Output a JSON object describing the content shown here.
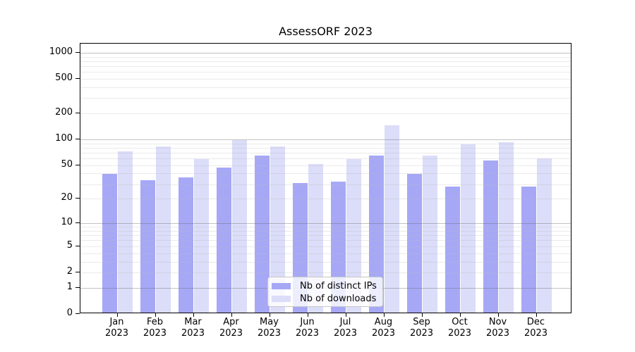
{
  "chart_data": {
    "type": "bar",
    "title": "AssessORF 2023",
    "categories": [
      "Jan",
      "Feb",
      "Mar",
      "Apr",
      "May",
      "Jun",
      "Jul",
      "Aug",
      "Sep",
      "Oct",
      "Nov",
      "Dec"
    ],
    "x_year_label": "2023",
    "series": [
      {
        "name": "Nb of distinct IPs",
        "color": "#a6a8f6",
        "values": [
          38,
          32,
          35,
          45,
          63,
          30,
          31,
          63,
          38,
          27,
          55,
          27
        ]
      },
      {
        "name": "Nb of downloads",
        "color": "#dbddf9",
        "values": [
          70,
          80,
          57,
          94,
          80,
          50,
          57,
          140,
          63,
          84,
          90,
          58
        ]
      }
    ],
    "yticks": [
      1000,
      500,
      200,
      100,
      50,
      20,
      10,
      5,
      2,
      1,
      0
    ],
    "yscale": "log10(value+1)",
    "ylim": [
      0,
      1270
    ],
    "xlabel": "",
    "ylabel": "",
    "grid": "both",
    "legend_position": "lower center",
    "colors": {
      "major_grid": "#bdbdbd",
      "minor_grid": "#e7e7e7",
      "axis": "#000000",
      "background": "#ffffff"
    }
  }
}
